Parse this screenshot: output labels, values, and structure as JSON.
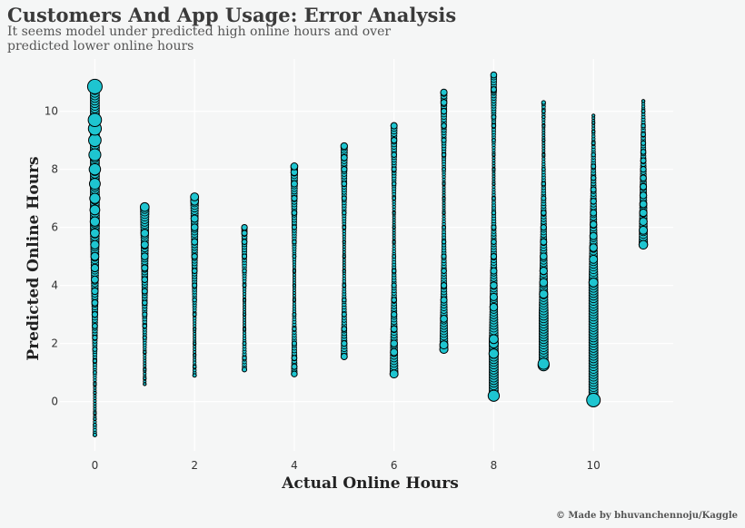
{
  "header": {
    "title": "Customers And App Usage: Error Analysis",
    "subtitle": "It seems model under predicted high online hours and over predicted lower online hours"
  },
  "footer": {
    "credit": "© Made by bhuvanchennoju/Kaggle"
  },
  "colors": {
    "background": "#f5f6f6",
    "grid": "#ffffff",
    "marker_fill": "#1ec5d0",
    "marker_edge": "#000000"
  },
  "chart_data": {
    "type": "scatter",
    "title": "Customers And App Usage: Error Analysis",
    "xlabel": "Actual Online Hours",
    "ylabel": "Predicted Online Hours",
    "xlim": [
      -0.7,
      11.6
    ],
    "ylim": [
      -1.7,
      11.8
    ],
    "x_ticks": [
      0,
      2,
      4,
      6,
      8,
      10
    ],
    "y_ticks": [
      0,
      2,
      4,
      6,
      8,
      10
    ],
    "grid": true,
    "marker_size_encodes": "absolute prediction error",
    "groups": [
      {
        "x": 0,
        "y_min": -1.15,
        "y_max": 10.85,
        "y_values": [
          -1.15,
          -0.8,
          -0.6,
          -0.4,
          0.3,
          0.6,
          1.0,
          1.4,
          1.8,
          2.2,
          2.6,
          3.0,
          3.4,
          3.8,
          4.2,
          4.6,
          5.0,
          5.4,
          5.8,
          6.2,
          6.6,
          7.0,
          7.5,
          8.0,
          8.5,
          9.0,
          9.4,
          9.7,
          10.85
        ]
      },
      {
        "x": 1,
        "y_min": 0.6,
        "y_max": 6.7,
        "y_values": [
          0.6,
          0.8,
          1.1,
          1.7,
          2.2,
          2.6,
          3.0,
          3.4,
          3.8,
          4.2,
          4.6,
          5.0,
          5.4,
          5.8,
          6.7
        ]
      },
      {
        "x": 2,
        "y_min": 0.9,
        "y_max": 7.05,
        "y_values": [
          0.9,
          1.2,
          1.6,
          2.0,
          2.5,
          3.0,
          3.5,
          4.0,
          4.5,
          5.0,
          5.5,
          6.0,
          6.3,
          6.9,
          7.05
        ]
      },
      {
        "x": 3,
        "y_min": 1.1,
        "y_max": 6.0,
        "y_values": [
          1.1,
          1.5,
          2.0,
          2.5,
          3.0,
          3.5,
          4.0,
          4.5,
          5.0,
          5.5,
          5.8,
          6.0
        ]
      },
      {
        "x": 4,
        "y_min": 0.95,
        "y_max": 8.1,
        "y_values": [
          0.95,
          1.2,
          1.5,
          2.0,
          2.5,
          3.0,
          3.5,
          4.0,
          4.5,
          5.0,
          5.5,
          6.0,
          6.5,
          7.0,
          7.5,
          7.9,
          8.1
        ]
      },
      {
        "x": 5,
        "y_min": 1.55,
        "y_max": 8.8,
        "y_values": [
          1.55,
          2.0,
          2.5,
          3.0,
          3.5,
          4.0,
          4.5,
          5.0,
          5.5,
          6.0,
          6.5,
          7.0,
          7.5,
          8.0,
          8.4,
          8.8
        ]
      },
      {
        "x": 6,
        "y_min": 0.95,
        "y_max": 9.5,
        "y_values": [
          0.95,
          1.7,
          2.0,
          2.5,
          3.0,
          3.5,
          4.0,
          4.5,
          5.0,
          5.5,
          6.0,
          6.5,
          7.0,
          7.5,
          8.0,
          8.5,
          9.0,
          9.5
        ]
      },
      {
        "x": 7,
        "y_min": 1.8,
        "y_max": 10.65,
        "y_values": [
          1.8,
          1.95,
          2.85,
          3.5,
          4.0,
          4.5,
          5.0,
          5.5,
          6.0,
          6.5,
          7.0,
          7.5,
          8.0,
          8.5,
          9.0,
          9.5,
          10.0,
          10.3,
          10.65
        ]
      },
      {
        "x": 8,
        "y_min": 0.2,
        "y_max": 11.25,
        "y_values": [
          0.2,
          1.65,
          2.0,
          2.15,
          3.25,
          3.6,
          4.0,
          4.5,
          5.0,
          5.5,
          6.0,
          6.5,
          7.0,
          7.5,
          8.0,
          8.5,
          9.0,
          9.5,
          9.8,
          10.7,
          10.75,
          11.25
        ]
      },
      {
        "x": 9,
        "y_min": 1.25,
        "y_max": 10.3,
        "y_values": [
          1.25,
          1.3,
          3.7,
          4.1,
          4.5,
          5.0,
          5.5,
          6.0,
          6.5,
          7.0,
          7.5,
          8.0,
          8.5,
          9.0,
          9.5,
          9.8,
          10.0,
          10.3
        ]
      },
      {
        "x": 10,
        "y_min": 0.05,
        "y_max": 9.85,
        "y_values": [
          0.05,
          4.1,
          4.9,
          5.3,
          5.7,
          6.1,
          6.5,
          6.9,
          7.3,
          7.7,
          8.1,
          8.5,
          8.9,
          9.3,
          9.6,
          9.85
        ]
      },
      {
        "x": 11,
        "y_min": 5.4,
        "y_max": 10.35,
        "y_values": [
          5.4,
          5.9,
          6.2,
          6.5,
          6.8,
          7.1,
          7.4,
          7.7,
          8.0,
          8.3,
          8.6,
          8.9,
          9.2,
          9.5,
          10.0,
          10.35
        ]
      }
    ]
  }
}
